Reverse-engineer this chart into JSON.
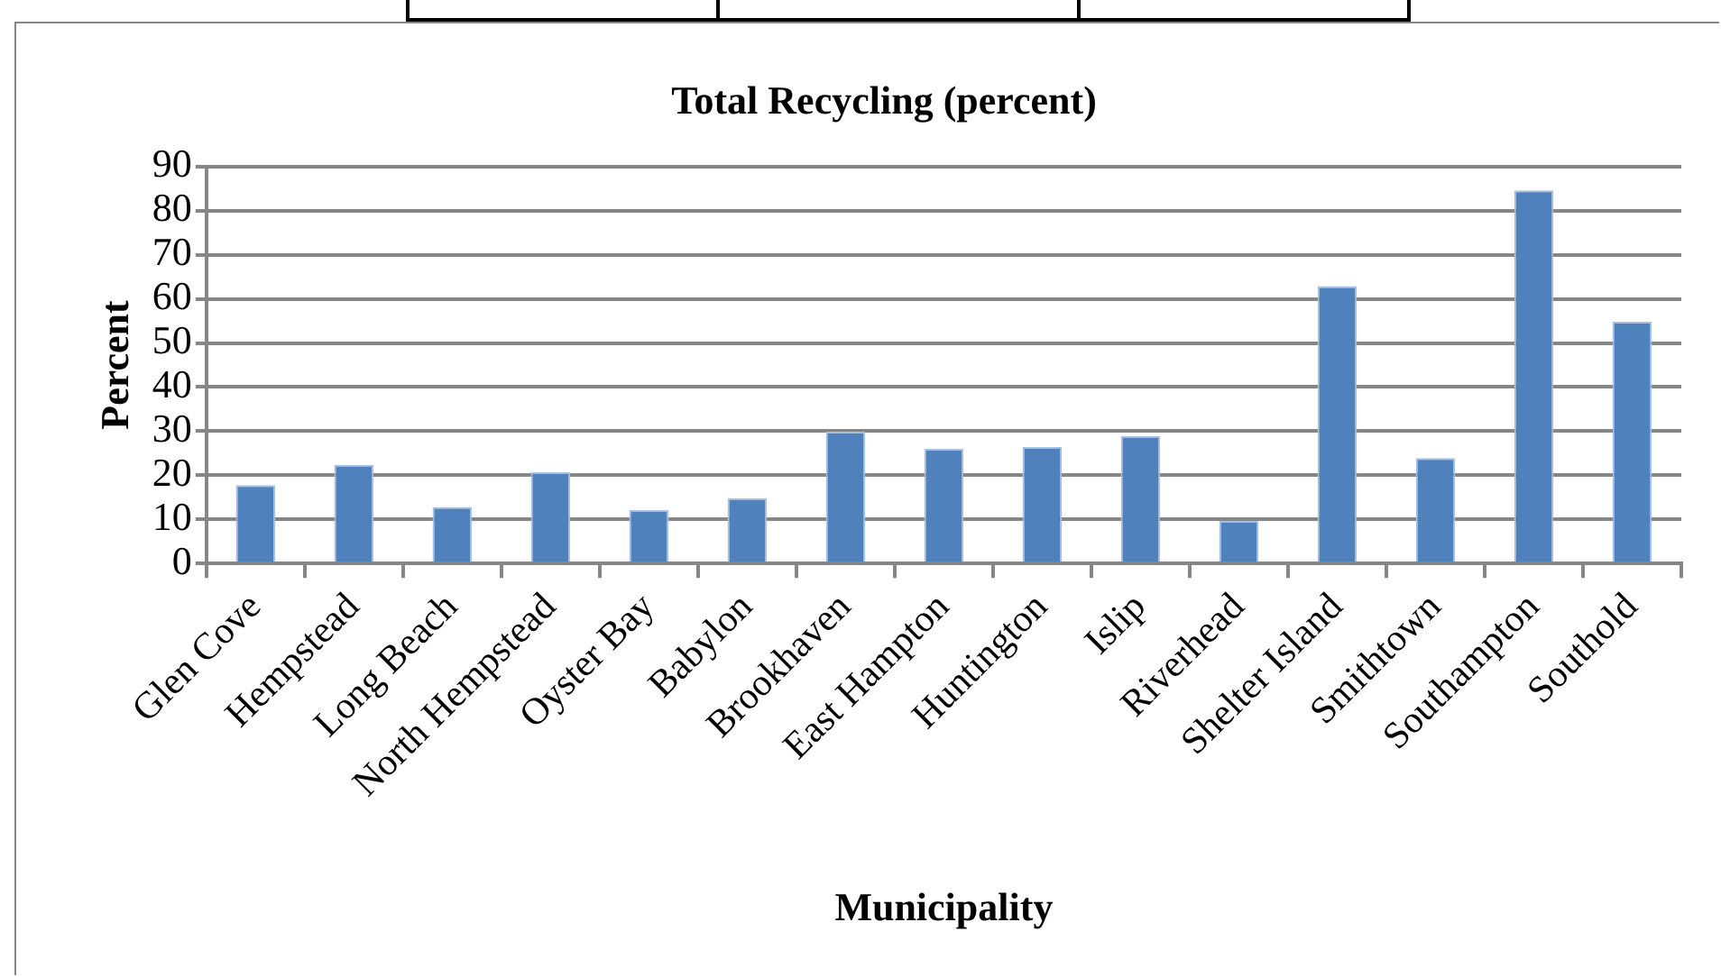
{
  "chart_data": {
    "type": "bar",
    "title": "Total Recycling (percent)",
    "xlabel": "Municipality",
    "ylabel": "Percent",
    "categories": [
      "Glen Cove",
      "Hempstead",
      "Long Beach",
      "North Hempstead",
      "Oyster Bay",
      "Babylon",
      "Brookhaven",
      "East Hampton",
      "Huntington",
      "Islip",
      "Riverhead",
      "Shelter Island",
      "Smithtown",
      "Southampton",
      "Southold"
    ],
    "values": [
      17.8,
      22.4,
      12.8,
      20.7,
      12.1,
      14.8,
      29.9,
      26.0,
      26.4,
      28.9,
      9.7,
      62.9,
      23.9,
      84.6,
      54.8
    ],
    "color": "#4f81bd",
    "ylim": [
      0,
      90
    ],
    "yticks": [
      0,
      10,
      20,
      30,
      40,
      50,
      60,
      70,
      80,
      90
    ],
    "grid": "y",
    "legend": false
  }
}
